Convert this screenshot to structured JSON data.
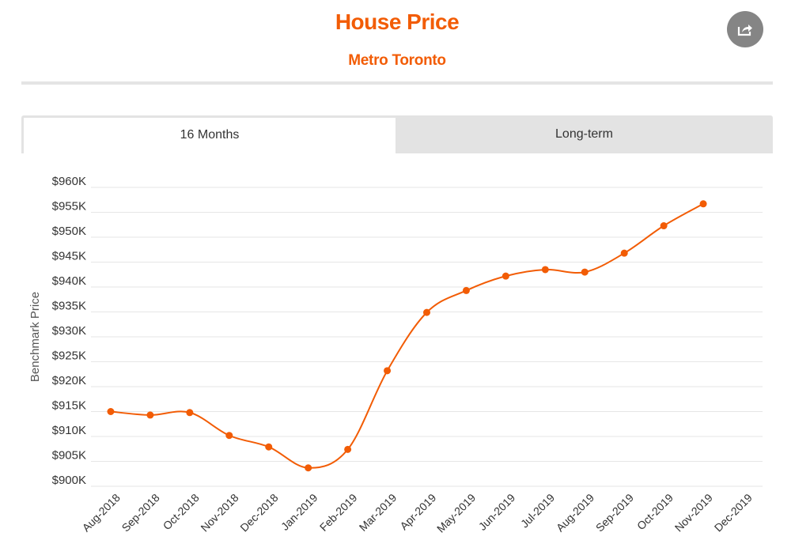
{
  "header": {
    "title": "House Price",
    "subtitle": "Metro Toronto"
  },
  "icons": {
    "share": "share-icon"
  },
  "tabs": [
    {
      "label": "16 Months",
      "active": true
    },
    {
      "label": "Long-term",
      "active": false
    }
  ],
  "colors": {
    "accent": "#f25c05",
    "grid": "#e6e6e6",
    "tab_bg": "#e3e3e3",
    "share_bg": "#858585"
  },
  "chart_data": {
    "type": "line",
    "title": "",
    "xlabel": "",
    "ylabel": "Benchmark Price",
    "categories": [
      "Aug-2018",
      "Sep-2018",
      "Oct-2018",
      "Nov-2018",
      "Dec-2018",
      "Jan-2019",
      "Feb-2019",
      "Mar-2019",
      "Apr-2019",
      "May-2019",
      "Jun-2019",
      "Jul-2019",
      "Aug-2019",
      "Sep-2019",
      "Oct-2019",
      "Nov-2019",
      "Dec-2019"
    ],
    "series": [
      {
        "values": [
          915000,
          914300,
          914800,
          910200,
          907900,
          903700,
          907400,
          923200,
          934900,
          939300,
          942200,
          943500,
          943000,
          946800,
          952300,
          956700,
          null
        ]
      }
    ],
    "ylim": [
      900000,
      960000
    ],
    "yticks": [
      900000,
      905000,
      910000,
      915000,
      920000,
      925000,
      930000,
      935000,
      940000,
      945000,
      950000,
      955000,
      960000
    ],
    "ytick_labels": [
      "$900K",
      "$905K",
      "$910K",
      "$915K",
      "$920K",
      "$925K",
      "$930K",
      "$935K",
      "$940K",
      "$945K",
      "$950K",
      "$955K",
      "$960K"
    ],
    "grid": true,
    "legend": "none"
  }
}
